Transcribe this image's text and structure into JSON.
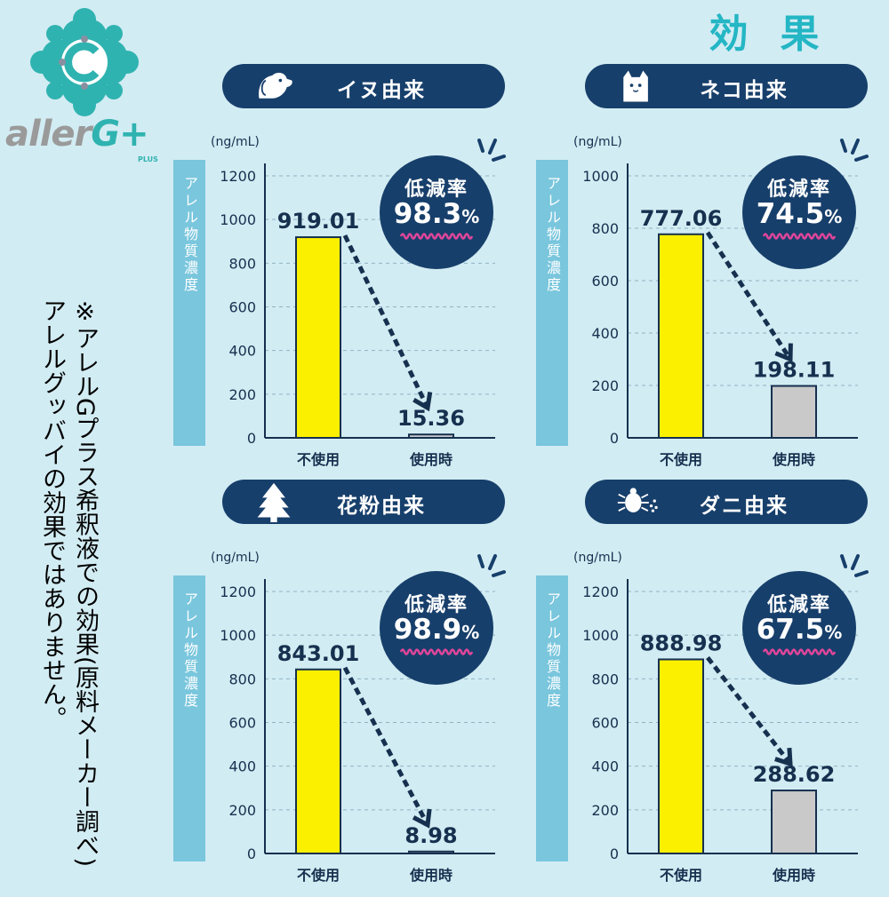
{
  "logo": {
    "text_main": "aller",
    "text_g": "G+",
    "text_plus": "PLUS"
  },
  "main_title": "効果",
  "note": "※アレルGプラス希釈液での効果(原料メーカー調べ)\nアレルグッバイの効果ではありません。",
  "colors": {
    "navy": "#173f6b",
    "teal": "#24b6c4",
    "bar_before": "#faf000",
    "bar_after": "#c9c9c9",
    "axis_band": "#79c6dd",
    "wave": "#e0459b"
  },
  "chart_data": [
    {
      "type": "bar",
      "title": "イヌ由来",
      "icon": "dog-icon",
      "unit": "(ng/mL)",
      "ylabel": "アレル物質濃度",
      "categories": [
        "不使用",
        "使用時"
      ],
      "values": [
        919.01,
        15.36
      ],
      "value_labels": [
        "919.01",
        "15.36"
      ],
      "reduction_label": "低減率",
      "reduction": "98.3",
      "reduction_unit": "%",
      "ylim": [
        0,
        1200
      ],
      "yticks": [
        0,
        200,
        400,
        600,
        800,
        1000,
        1200
      ],
      "grid": true
    },
    {
      "type": "bar",
      "title": "ネコ由来",
      "icon": "cat-icon",
      "unit": "(ng/mL)",
      "ylabel": "アレル物質濃度",
      "categories": [
        "不使用",
        "使用時"
      ],
      "values": [
        777.06,
        198.11
      ],
      "value_labels": [
        "777.06",
        "198.11"
      ],
      "reduction_label": "低減率",
      "reduction": "74.5",
      "reduction_unit": "%",
      "ylim": [
        0,
        1000
      ],
      "yticks": [
        0,
        200,
        400,
        600,
        800,
        1000
      ],
      "grid": true
    },
    {
      "type": "bar",
      "title": "花粉由来",
      "icon": "tree-icon",
      "unit": "(ng/mL)",
      "ylabel": "アレル物質濃度",
      "categories": [
        "不使用",
        "使用時"
      ],
      "values": [
        843.01,
        8.98
      ],
      "value_labels": [
        "843.01",
        "8.98"
      ],
      "reduction_label": "低減率",
      "reduction": "98.9",
      "reduction_unit": "%",
      "ylim": [
        0,
        1200
      ],
      "yticks": [
        0,
        200,
        400,
        600,
        800,
        1000,
        1200
      ],
      "grid": true
    },
    {
      "type": "bar",
      "title": "ダニ由来",
      "icon": "mite-icon",
      "unit": "(ng/mL)",
      "ylabel": "アレル物質濃度",
      "categories": [
        "不使用",
        "使用時"
      ],
      "values": [
        888.98,
        288.62
      ],
      "value_labels": [
        "888.98",
        "288.62"
      ],
      "reduction_label": "低減率",
      "reduction": "67.5",
      "reduction_unit": "%",
      "ylim": [
        0,
        1200
      ],
      "yticks": [
        0,
        200,
        400,
        600,
        800,
        1000,
        1200
      ],
      "grid": true
    }
  ]
}
